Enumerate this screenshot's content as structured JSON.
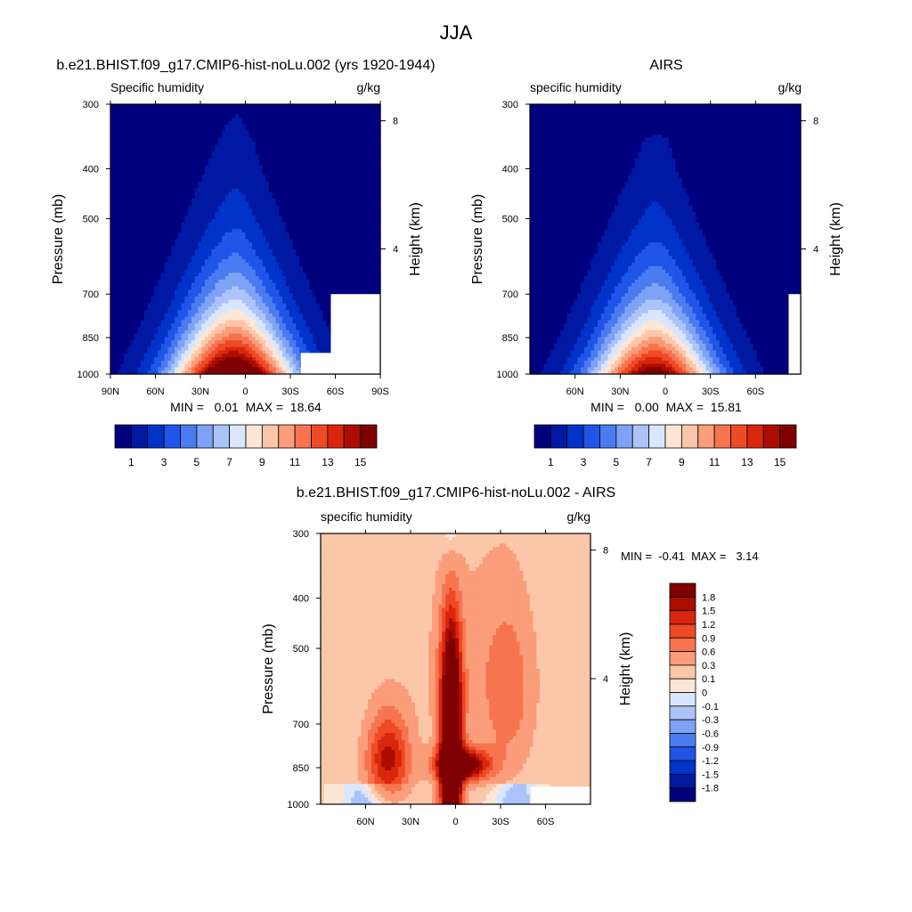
{
  "figure": {
    "title": "JJA"
  },
  "panels": [
    {
      "title": "b.e21.BHIST.f09_g17.CMIP6-hist-noLu.002 (yrs 1920-1944)",
      "left_label": "Specific humidity",
      "right_label": "g/kg",
      "stats": "MIN =   0.01  MAX =  18.64"
    },
    {
      "title": "AIRS",
      "left_label": "specific humidity",
      "right_label": "g/kg",
      "stats": "MIN =   0.00  MAX =  15.81"
    },
    {
      "title": "b.e21.BHIST.f09_g17.CMIP6-hist-noLu.002 - AIRS",
      "left_label": "specific humidity",
      "right_label": "g/kg",
      "stats": "MIN =  -0.41  MAX =   3.14"
    }
  ],
  "colors": {
    "qv_scale": [
      "#00007f",
      "#0019a3",
      "#0033c9",
      "#1f55e8",
      "#4a7bf0",
      "#7ea2f5",
      "#aac4fa",
      "#d9e6fd",
      "#fde6d5",
      "#fcc6a9",
      "#fa9d7a",
      "#f7744f",
      "#ef4a26",
      "#d9260c",
      "#ac0d00",
      "#7f0000"
    ],
    "diff_scale": [
      "#00007f",
      "#0019a3",
      "#0033c9",
      "#1f55e8",
      "#4a7bf0",
      "#7ea2f5",
      "#aac4fa",
      "#d9e6fd",
      "#fde6d5",
      "#fcc6a9",
      "#fa9d7a",
      "#f7744f",
      "#ef4a26",
      "#d9260c",
      "#ac0d00",
      "#7f0000"
    ]
  },
  "chart_data": [
    {
      "type": "heatmap",
      "title": "b.e21.BHIST.f09_g17.CMIP6-hist-noLu.002 (yrs 1920-1944)",
      "variable": "Specific humidity",
      "units": "g/kg",
      "xlabel": "",
      "ylabel": "Pressure (mb)",
      "ylabel_right": "Height (km)",
      "x_ticks": [
        "90N",
        "60N",
        "30N",
        "0",
        "30S",
        "60S",
        "90S"
      ],
      "x_tick_values": [
        90,
        60,
        30,
        0,
        -30,
        -60,
        -90
      ],
      "xlim": [
        90,
        -90
      ],
      "y_ticks": [
        300,
        400,
        500,
        700,
        850,
        1000
      ],
      "ylim": [
        1000,
        300
      ],
      "height_ticks": [
        4,
        8
      ],
      "levels": [
        1,
        2,
        3,
        4,
        5,
        6,
        7,
        8,
        9,
        10,
        11,
        12,
        13,
        14,
        15
      ],
      "colorbar_labels": [
        "1",
        "3",
        "5",
        "7",
        "9",
        "11",
        "13",
        "15"
      ],
      "max_location": {
        "lat": 10,
        "pressure": 1000
      },
      "min": 0.01,
      "max": 18.64
    },
    {
      "type": "heatmap",
      "title": "AIRS",
      "variable": "specific humidity",
      "units": "g/kg",
      "xlabel": "",
      "ylabel": "Pressure (mb)",
      "ylabel_right": "Height (km)",
      "x_ticks": [
        "60N",
        "30N",
        "0",
        "30S",
        "60S"
      ],
      "x_tick_values": [
        60,
        30,
        0,
        -30,
        -60
      ],
      "xlim": [
        90,
        -90
      ],
      "y_ticks": [
        300,
        400,
        500,
        700,
        850,
        1000
      ],
      "ylim": [
        1000,
        300
      ],
      "height_ticks": [
        4,
        8
      ],
      "levels": [
        1,
        2,
        3,
        4,
        5,
        6,
        7,
        8,
        9,
        10,
        11,
        12,
        13,
        14,
        15
      ],
      "colorbar_labels": [
        "1",
        "3",
        "5",
        "7",
        "9",
        "11",
        "13",
        "15"
      ],
      "max_location": {
        "lat": 10,
        "pressure": 1000
      },
      "min": 0.0,
      "max": 15.81
    },
    {
      "type": "heatmap",
      "title": "b.e21.BHIST.f09_g17.CMIP6-hist-noLu.002 - AIRS",
      "variable": "specific humidity",
      "units": "g/kg",
      "xlabel": "",
      "ylabel": "Pressure (mb)",
      "ylabel_right": "Height (km)",
      "x_ticks": [
        "60N",
        "30N",
        "0",
        "30S",
        "60S"
      ],
      "x_tick_values": [
        60,
        30,
        0,
        -30,
        -60
      ],
      "xlim": [
        90,
        -90
      ],
      "y_ticks": [
        300,
        400,
        500,
        700,
        850,
        1000
      ],
      "ylim": [
        1000,
        300
      ],
      "height_ticks": [
        4,
        8
      ],
      "levels": [
        -1.8,
        -1.5,
        -1.2,
        -0.9,
        -0.6,
        -0.3,
        -0.1,
        0,
        0.1,
        0.3,
        0.6,
        0.9,
        1.2,
        1.5,
        1.8
      ],
      "colorbar_labels": [
        "1.8",
        "1.5",
        "1.2",
        "0.9",
        "0.6",
        "0.3",
        "0.1",
        "0",
        "-0.1",
        "-0.3",
        "-0.6",
        "-0.9",
        "-1.2",
        "-1.5",
        "-1.8"
      ],
      "max_location": {
        "lat": 5,
        "pressure": 850
      },
      "min": -0.41,
      "max": 3.14
    }
  ]
}
